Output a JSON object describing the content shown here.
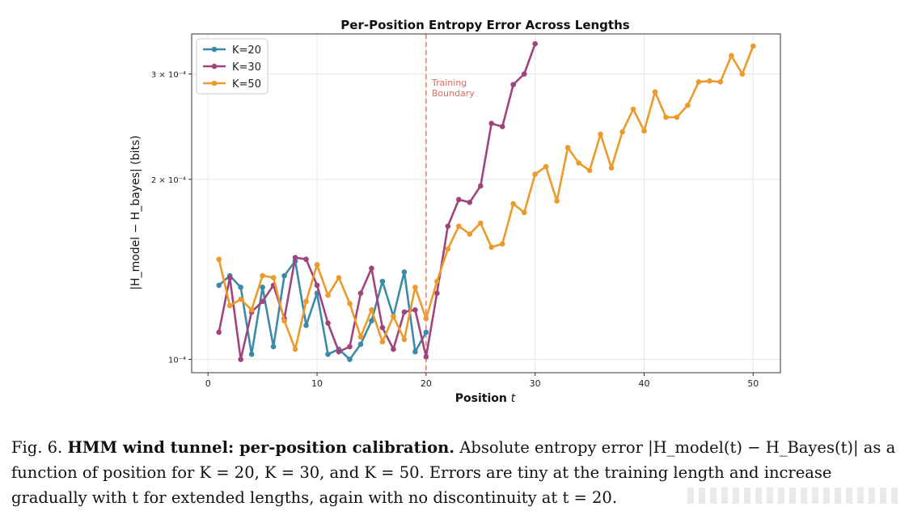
{
  "chart_data": {
    "type": "line",
    "title": "Per-Position Entropy Error Across Lengths",
    "xlabel": "Position t",
    "ylabel": "|H_model − H_bayes| (bits)",
    "xlim": [
      -1.5,
      52.5
    ],
    "ylim": [
      9.5e-05,
      0.00035
    ],
    "yscale": "log",
    "xticks": [
      0,
      10,
      20,
      30,
      40,
      50
    ],
    "yticks": [
      0.0001,
      0.0002,
      0.0003
    ],
    "ytick_labels": [
      "10⁻⁴",
      "2 × 10⁻⁴",
      "3 × 10⁻⁴"
    ],
    "grid": true,
    "legend_position": "top-left",
    "annotation": {
      "x": 20,
      "label_line1": "Training",
      "label_line2": "Boundary",
      "color": "#e06a5e"
    },
    "series": [
      {
        "name": "K=20",
        "color": "#3d8aa8",
        "x": [
          1,
          2,
          3,
          4,
          5,
          6,
          7,
          8,
          9,
          10,
          11,
          12,
          13,
          14,
          15,
          16,
          17,
          18,
          19,
          20
        ],
        "values": [
          0.000133,
          0.000138,
          0.000132,
          0.000102,
          0.000132,
          0.000105,
          0.000138,
          0.000146,
          0.000114,
          0.000129,
          0.000102,
          0.000104,
          0.0001,
          0.000106,
          0.000116,
          0.000135,
          0.000118,
          0.00014,
          0.000103,
          0.000111
        ]
      },
      {
        "name": "K=30",
        "color": "#a0457b",
        "x": [
          1,
          2,
          3,
          4,
          5,
          6,
          7,
          8,
          9,
          10,
          11,
          12,
          13,
          14,
          15,
          16,
          17,
          18,
          19,
          20,
          21,
          22,
          23,
          24,
          25,
          26,
          27,
          28,
          29,
          30
        ],
        "values": [
          0.000111,
          0.000137,
          0.0001,
          0.00012,
          0.000125,
          0.000133,
          0.000117,
          0.000148,
          0.000147,
          0.000133,
          0.000115,
          0.000103,
          0.000105,
          0.000129,
          0.000142,
          0.000113,
          0.000104,
          0.00012,
          0.000121,
          0.000101,
          0.000129,
          0.000167,
          0.000185,
          0.000183,
          0.000195,
          0.000248,
          0.000245,
          0.000288,
          0.0003,
          0.000337
        ]
      },
      {
        "name": "K=50",
        "color": "#eb9a2c",
        "x": [
          1,
          2,
          3,
          4,
          5,
          6,
          7,
          8,
          9,
          10,
          11,
          12,
          13,
          14,
          15,
          16,
          17,
          18,
          19,
          20,
          21,
          22,
          23,
          24,
          25,
          26,
          27,
          28,
          29,
          30,
          31,
          32,
          33,
          34,
          35,
          36,
          37,
          38,
          39,
          40,
          41,
          42,
          43,
          44,
          45,
          46,
          47,
          48,
          49,
          50
        ],
        "values": [
          0.000147,
          0.000123,
          0.000126,
          0.000121,
          0.000138,
          0.000137,
          0.000116,
          0.000104,
          0.000125,
          0.000144,
          0.000128,
          0.000137,
          0.000124,
          0.000109,
          0.000121,
          0.000107,
          0.000118,
          0.000108,
          0.000132,
          0.000117,
          0.000135,
          0.000153,
          0.000167,
          0.000162,
          0.000169,
          0.000154,
          0.000156,
          0.000182,
          0.000176,
          0.000204,
          0.00021,
          0.000184,
          0.000226,
          0.000213,
          0.000207,
          0.000238,
          0.000209,
          0.00024,
          0.000262,
          0.000241,
          0.00028,
          0.000254,
          0.000254,
          0.000266,
          0.000291,
          0.000292,
          0.000291,
          0.000322,
          0.0003,
          0.000334
        ]
      }
    ]
  },
  "caption": {
    "fig_label": "Fig. 6.",
    "bold_title": "HMM wind tunnel: per-position calibration.",
    "text": "Absolute entropy error |H_model(t) − H_Bayes(t)| as a function of position for K = 20, K = 30, and K = 50. Errors are tiny at the training length and increase gradually with t for extended lengths, again with no discontinuity at t = 20."
  }
}
